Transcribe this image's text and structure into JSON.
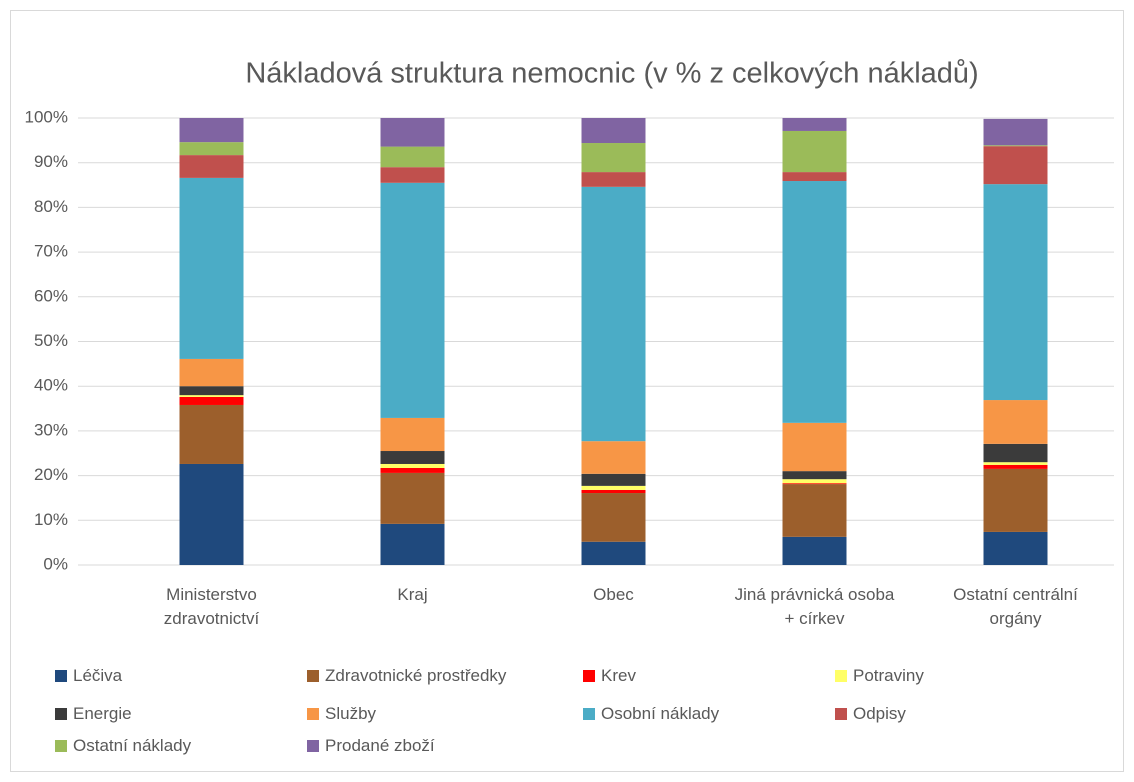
{
  "chart_data": {
    "type": "bar",
    "stacked": true,
    "title": "Nákladová struktura nemocnic (v % z celkových nákladů)",
    "categories": [
      "Ministerstvo zdravotnictví",
      "Kraj",
      "Obec",
      "Jiná právnická osoba + církev",
      "Ostatní centrální orgány"
    ],
    "series": [
      {
        "name": "Léčiva",
        "color": "#1f497d",
        "values": [
          22.6,
          9.2,
          5.2,
          6.3,
          7.4
        ]
      },
      {
        "name": "Zdravotnické prostředky",
        "color": "#9c5f2c",
        "values": [
          13.2,
          11.4,
          10.9,
          11.8,
          14.1
        ]
      },
      {
        "name": "Krev",
        "color": "#ff0000",
        "values": [
          1.8,
          1.1,
          0.7,
          0.2,
          0.9
        ]
      },
      {
        "name": "Potraviny",
        "color": "#ffff66",
        "values": [
          0.4,
          0.9,
          0.9,
          0.9,
          0.6
        ]
      },
      {
        "name": "Energie",
        "color": "#3b3b3b",
        "values": [
          2.0,
          2.9,
          2.7,
          1.8,
          4.1
        ]
      },
      {
        "name": "Služby",
        "color": "#f79646",
        "values": [
          6.1,
          7.4,
          7.3,
          10.8,
          9.8
        ]
      },
      {
        "name": "Osobní náklady",
        "color": "#4bacc6",
        "values": [
          40.5,
          52.6,
          56.9,
          54.1,
          48.3
        ]
      },
      {
        "name": "Odpisy",
        "color": "#c0504d",
        "values": [
          5.1,
          3.5,
          3.3,
          2.0,
          8.5
        ]
      },
      {
        "name": "Ostatní náklady",
        "color": "#9bbb59",
        "values": [
          2.9,
          4.6,
          6.5,
          9.2,
          0.2
        ]
      },
      {
        "name": "Prodané zboží",
        "color": "#8064a2",
        "values": [
          5.4,
          6.4,
          5.6,
          2.9,
          5.9
        ]
      }
    ],
    "ylim": [
      0,
      100
    ],
    "yticks": [
      {
        "value": 0,
        "label": "0%"
      },
      {
        "value": 10,
        "label": "10%"
      },
      {
        "value": 20,
        "label": "20%"
      },
      {
        "value": 30,
        "label": "30%"
      },
      {
        "value": 40,
        "label": "40%"
      },
      {
        "value": 50,
        "label": "50%"
      },
      {
        "value": 60,
        "label": "60%"
      },
      {
        "value": 70,
        "label": "70%"
      },
      {
        "value": 80,
        "label": "80%"
      },
      {
        "value": 90,
        "label": "90%"
      },
      {
        "value": 100,
        "label": "100%"
      }
    ],
    "grid": true,
    "legend": "bottom"
  }
}
